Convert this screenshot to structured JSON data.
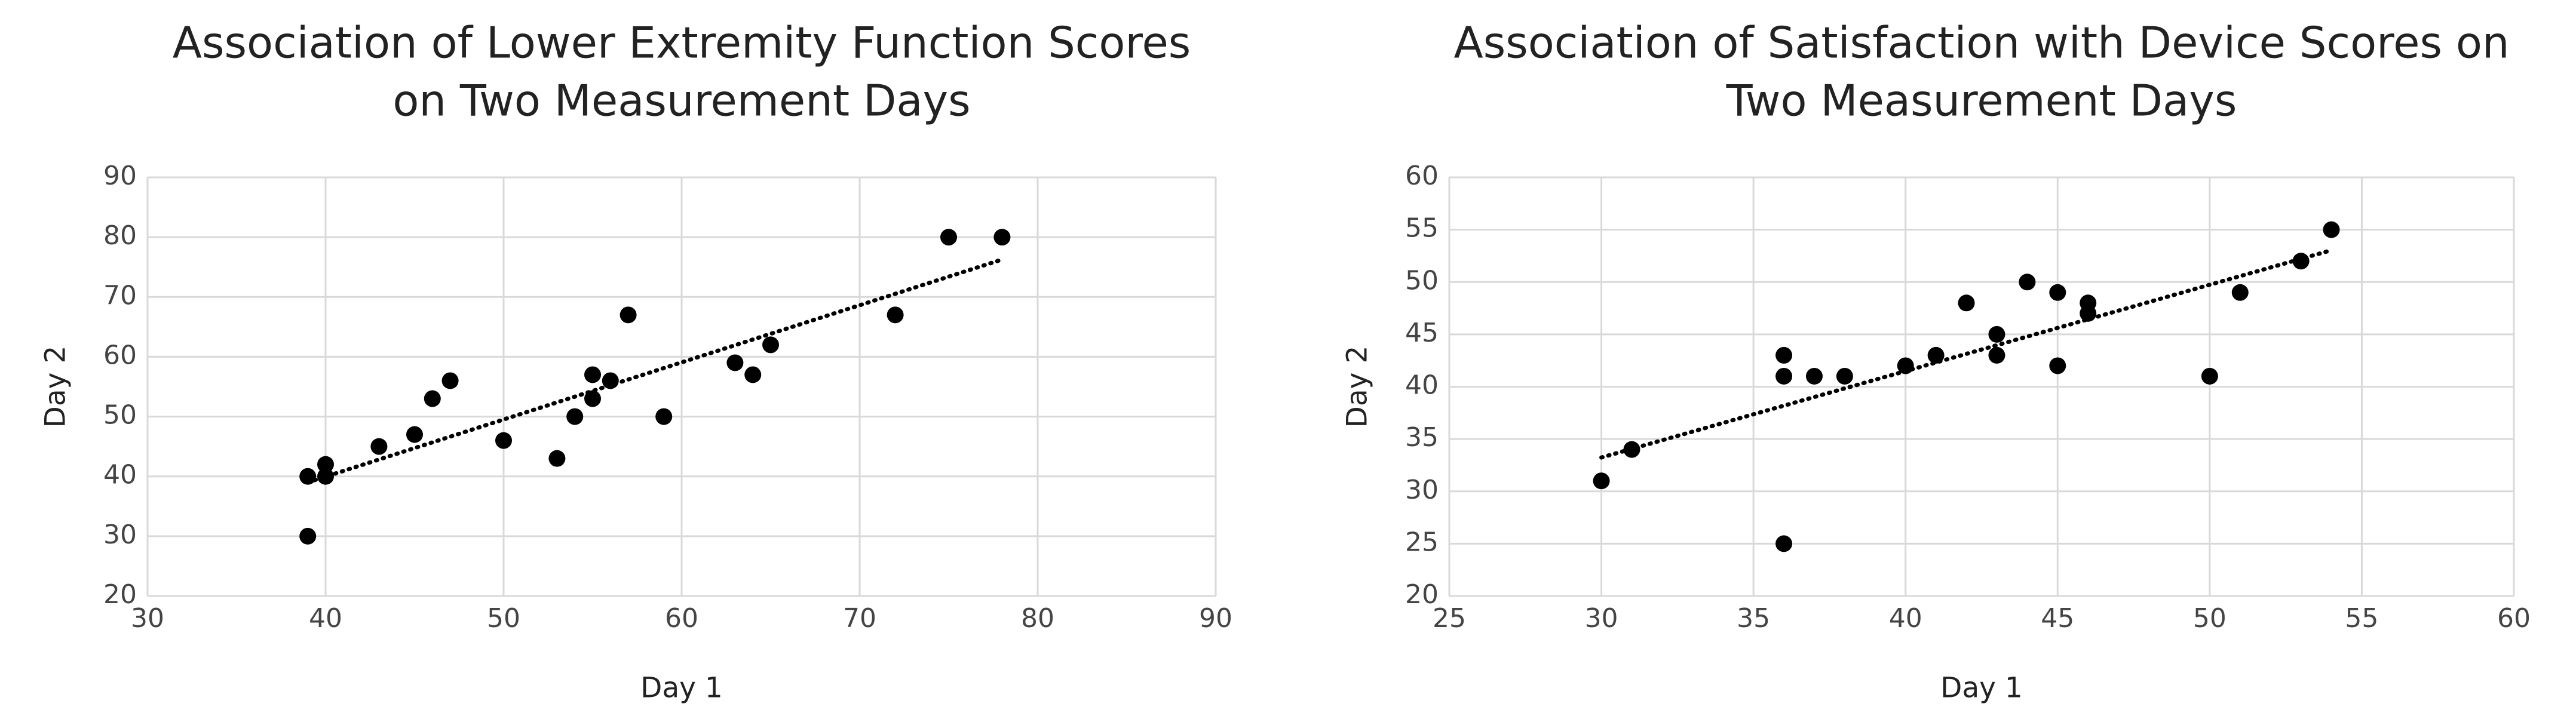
{
  "chart_data": [
    {
      "type": "scatter",
      "title": [
        "Association of Lower Extremity Function Scores",
        "on Two Measurement Days"
      ],
      "x_label": "Day 1",
      "y_label": "Day 2",
      "x": [
        39,
        39,
        40,
        40,
        43,
        45,
        46,
        47,
        50,
        53,
        54,
        55,
        55,
        56,
        57,
        59,
        63,
        64,
        65,
        72,
        75,
        78
      ],
      "y": [
        40,
        30,
        42,
        40,
        45,
        47,
        53,
        56,
        46,
        43,
        50,
        57,
        53,
        56,
        67,
        50,
        59,
        57,
        62,
        67,
        80,
        80
      ],
      "color": "#000000",
      "trendline": true,
      "grid": true,
      "xlim": [
        30,
        90
      ],
      "xticks": [
        30,
        40,
        50,
        60,
        70,
        80,
        90
      ],
      "ylim": [
        20,
        90
      ],
      "yticks": [
        20,
        30,
        40,
        50,
        60,
        70,
        80,
        90
      ]
    },
    {
      "type": "scatter",
      "title": [
        "Association of Satisfaction with Device Scores on",
        "Two Measurement Days"
      ],
      "x_label": "Day 1",
      "y_label": "Day 2",
      "x": [
        30,
        31,
        36,
        36,
        36,
        37,
        38,
        40,
        41,
        42,
        43,
        43,
        44,
        45,
        45,
        46,
        46,
        50,
        51,
        53,
        54
      ],
      "y": [
        31,
        34,
        43,
        41,
        25,
        41,
        41,
        42,
        43,
        48,
        45,
        43,
        50,
        49,
        42,
        48,
        47,
        41,
        49,
        52,
        55
      ],
      "color": "#000000",
      "trendline": true,
      "grid": true,
      "xlim": [
        25,
        60
      ],
      "xticks": [
        25,
        30,
        35,
        40,
        45,
        50,
        55,
        60
      ],
      "ylim": [
        20,
        60
      ],
      "yticks": [
        20,
        25,
        30,
        35,
        40,
        45,
        50,
        55,
        60
      ]
    }
  ]
}
